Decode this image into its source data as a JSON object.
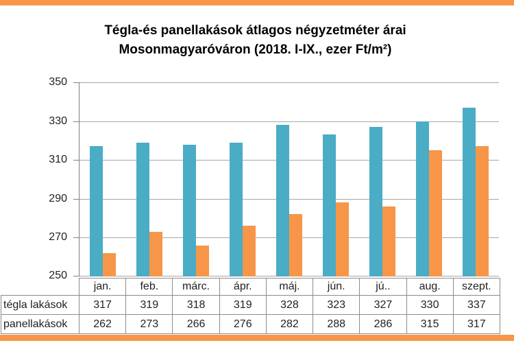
{
  "colors": {
    "accent": "#F79648",
    "gridline": "#A6A6A6",
    "axis": "#7F7F7F",
    "table-border": "#8A8A8A",
    "text": "#1F1F1F",
    "title-text": "#000000"
  },
  "title": {
    "line1": "Tégla-és panellakások átlagos négyzetméter árai",
    "line2": "Mosonmagyaróváron (2018. I-IX., ezer Ft/m²)"
  },
  "chart_data": {
    "type": "bar",
    "title": "Tégla-és panellakások átlagos négyzetméter árai Mosonmagyaróváron (2018. I-IX., ezer Ft/m²)",
    "categories": [
      "jan.",
      "feb.",
      "márc.",
      "ápr.",
      "máj.",
      "jún.",
      "jú..",
      "aug.",
      "szept."
    ],
    "series": [
      {
        "name": "tégla lakások",
        "color": "#4AACC5",
        "values": [
          317,
          319,
          318,
          319,
          328,
          323,
          327,
          330,
          337
        ]
      },
      {
        "name": "panellakások",
        "color": "#F79648",
        "values": [
          262,
          273,
          266,
          276,
          282,
          288,
          286,
          315,
          317
        ]
      }
    ],
    "xlabel": "",
    "ylabel": "",
    "ylim": [
      250,
      350
    ],
    "yticks": [
      250,
      270,
      290,
      310,
      330,
      350
    ],
    "grid": true,
    "legend_position": "none"
  }
}
